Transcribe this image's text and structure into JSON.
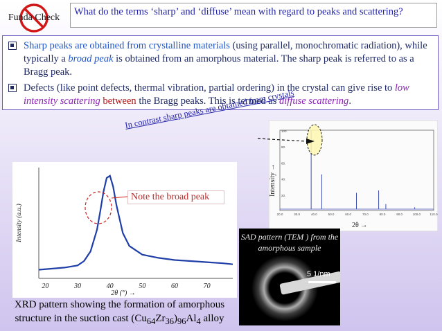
{
  "header": {
    "logo_label": "Funda Check",
    "question": "What do the terms ‘sharp’ and ‘diffuse’ mean with regard to peaks and scattering?"
  },
  "bullets": {
    "b1_p1": "Sharp peaks are obtained from crystalline materials",
    "b1_p2": " (using parallel, monochromatic radiation), while typically a ",
    "b1_p3": "broad peak",
    "b1_p4": " is obtained from an amorphous material. The sharp peak is referred to as a Bragg peak.",
    "b2_p1": "Defects (like point defects, thermal vibration, partial ordering) in the crystal can give rise to ",
    "b2_p2": "low intensity scattering",
    "b2_p3": " ",
    "b2_p4": "between",
    "b2_p5": " the Bragg peaks. This is termed as ",
    "b2_p6": "diffuse scattering",
    "b2_p7": "."
  },
  "annotations": {
    "contrast_note": "In contrast sharp peaks are obtained from crystals",
    "broad_peak_note": "Note the broad peak"
  },
  "left_chart": {
    "ylabel": "Intensity (a.u.)",
    "xlabel": "2θ (°) →",
    "xticks": [
      "20",
      "30",
      "40",
      "50",
      "60",
      "70"
    ]
  },
  "right_chart": {
    "ylabel": "Intensity →",
    "xlabel": "2θ →",
    "yticks": [
      "100.",
      "80.",
      "60.",
      "40.",
      "20."
    ],
    "xticks": [
      "20.0",
      "30.0",
      "40.0",
      "50.0",
      "60.0",
      "70.0",
      "80.0",
      "90.0",
      "100.0",
      "110.0"
    ]
  },
  "sad": {
    "title": "SAD pattern (TEM ) from the amorphous sample",
    "scale": "5 1/nm"
  },
  "caption": {
    "line1": "XRD pattern showing the formation of amorphous",
    "line2_a": "structure in the suction cast (Cu",
    "sub1": "64",
    "line2_b": "Zr",
    "sub2": "36",
    "line2_c": ")",
    "sub3": "96",
    "line2_d": "Al",
    "sub4": "4",
    "line2_e": " alloy"
  },
  "chart_data": [
    {
      "type": "line",
      "xlabel": "2θ (°) →",
      "ylabel": "Intensity (a.u.)",
      "xlim": [
        18,
        78
      ],
      "x": [
        18,
        22,
        26,
        30,
        32,
        34,
        36,
        37,
        38,
        39,
        40,
        41,
        42,
        44,
        46,
        50,
        55,
        60,
        65,
        70,
        75,
        78
      ],
      "y": [
        0.08,
        0.09,
        0.1,
        0.12,
        0.16,
        0.25,
        0.45,
        0.62,
        0.8,
        0.93,
        0.95,
        0.85,
        0.68,
        0.42,
        0.3,
        0.22,
        0.19,
        0.17,
        0.16,
        0.15,
        0.14,
        0.13
      ]
    },
    {
      "type": "line",
      "xlabel": "2θ →",
      "ylabel": "Intensity →",
      "xlim": [
        20,
        110
      ],
      "ylim": [
        0,
        100
      ],
      "peaks": [
        {
          "x": 38.3,
          "y": 100
        },
        {
          "x": 44.5,
          "y": 45
        },
        {
          "x": 64.8,
          "y": 22
        },
        {
          "x": 77.8,
          "y": 25
        },
        {
          "x": 82.0,
          "y": 8
        },
        {
          "x": 98.9,
          "y": 4
        }
      ]
    }
  ]
}
